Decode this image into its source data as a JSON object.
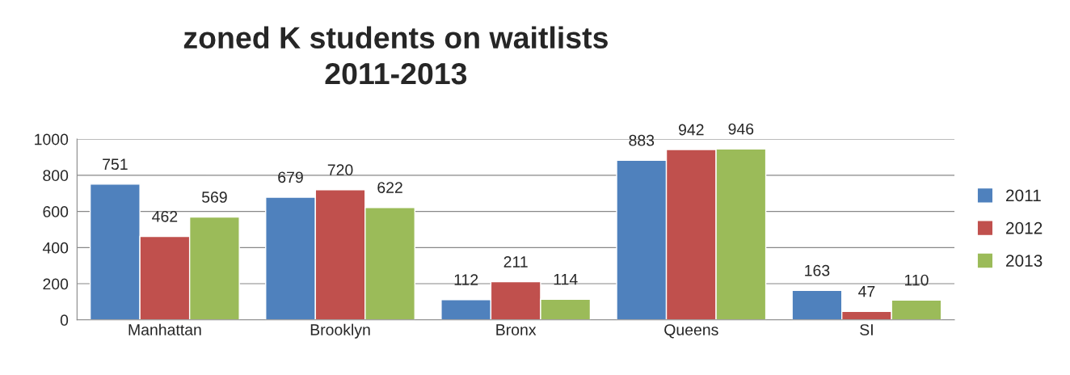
{
  "chart_data": {
    "type": "bar",
    "title": "zoned K students on waitlists\n2011-2013",
    "categories": [
      "Manhattan",
      "Brooklyn",
      "Bronx",
      "Queens",
      "SI"
    ],
    "series": [
      {
        "name": "2011",
        "color": "#4f81bd",
        "values": [
          751,
          679,
          112,
          883,
          163
        ]
      },
      {
        "name": "2012",
        "color": "#c0504d",
        "values": [
          462,
          720,
          211,
          942,
          47
        ]
      },
      {
        "name": "2013",
        "color": "#9bbb59",
        "values": [
          569,
          622,
          114,
          946,
          110
        ]
      }
    ],
    "ylim": [
      0,
      1000
    ],
    "yticks": [
      0,
      200,
      400,
      600,
      800,
      1000
    ],
    "grid": "y",
    "legend": "right",
    "data_labels": true
  }
}
